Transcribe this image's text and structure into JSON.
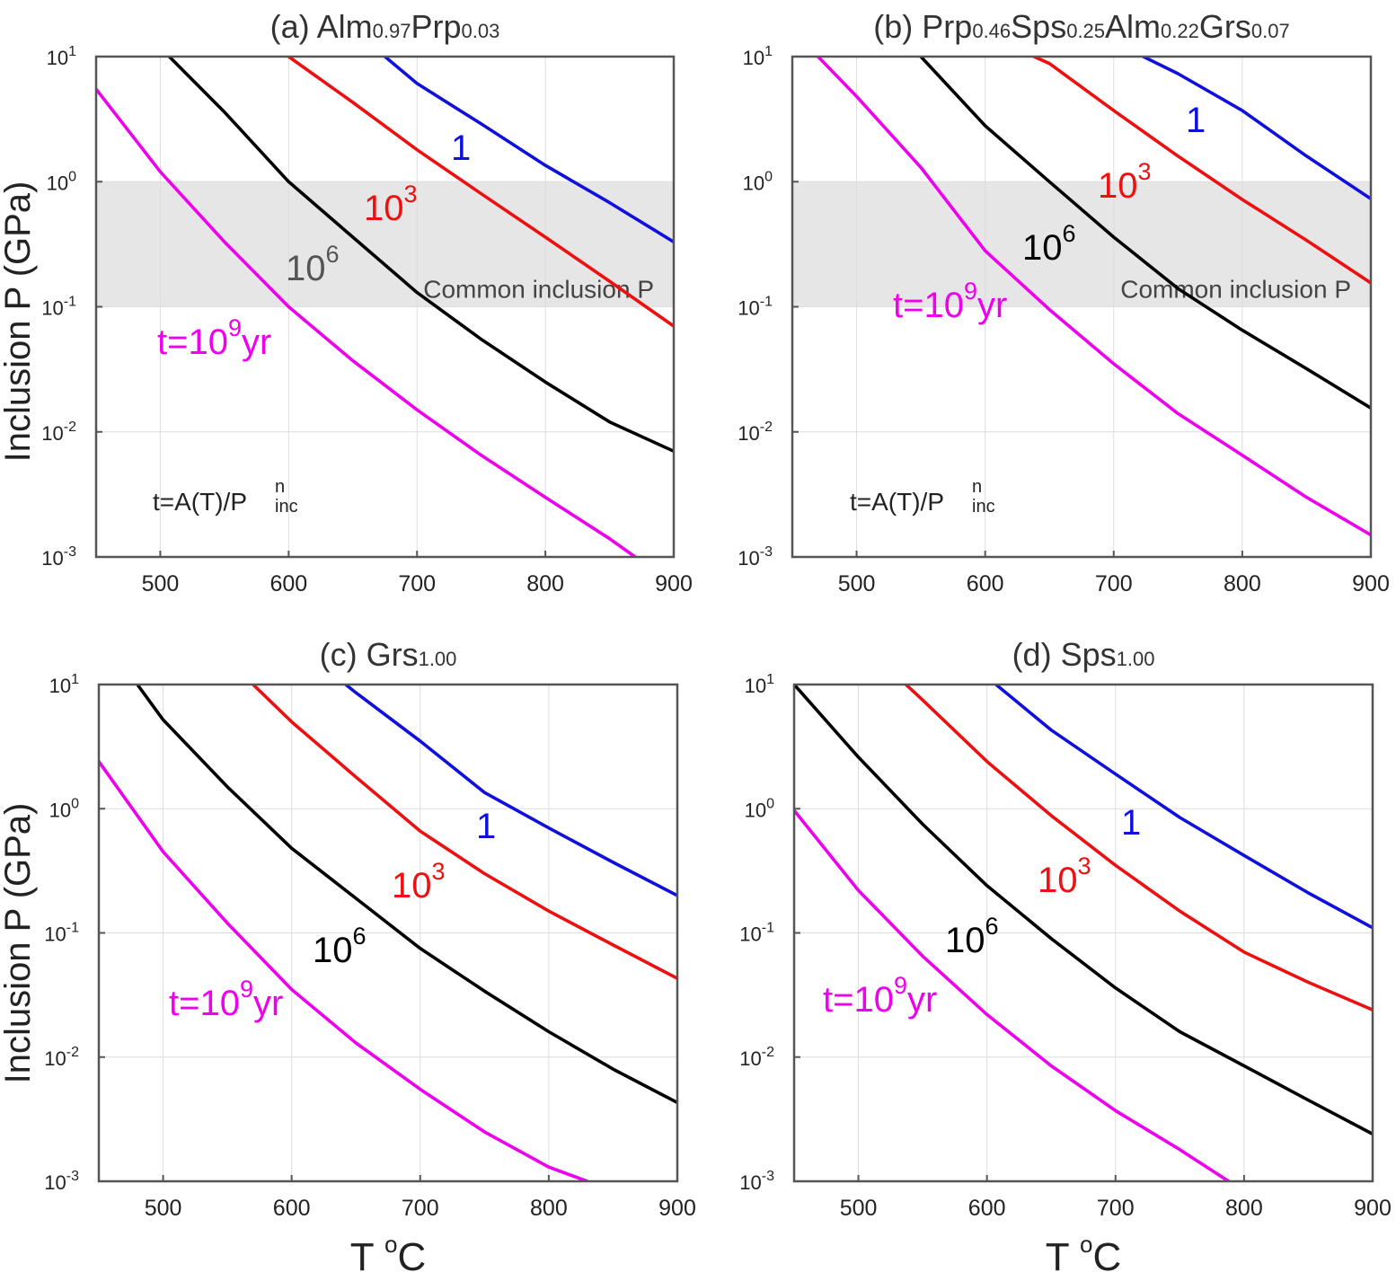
{
  "figure": {
    "ylabel": "Inclusion P (GPa)",
    "xlabel_main": "T",
    "xlabel_sup": "o",
    "xlabel_unit": "C"
  },
  "colors": {
    "t1": "#1010dd",
    "t1e3": "#ee1010",
    "t1e6": "#000000",
    "t1e9": "#ee00ee",
    "band": "#e6e6e6",
    "grid": "#dddddd",
    "axis": "#555555",
    "label_gray": "#555555"
  },
  "chart_data": [
    {
      "id": "a",
      "type": "line",
      "title_prefix": "(a) ",
      "title_parts": [
        [
          "Alm",
          "0.97"
        ],
        [
          "Prp",
          "0.03"
        ]
      ],
      "xlim": [
        450,
        900
      ],
      "ylim": [
        0.001,
        10
      ],
      "yscale": "log",
      "xticks": [
        500,
        600,
        700,
        800,
        900
      ],
      "ytick_exponents": [
        1,
        0,
        -1,
        -2,
        -3
      ],
      "grid": true,
      "band": {
        "ymin": 0.1,
        "ymax": 1,
        "label": "Common inclusion P"
      },
      "formula": {
        "main": "t=A(T)/P",
        "sup": "n",
        "sub": "inc"
      },
      "series": [
        {
          "label": "1",
          "color_key": "t1",
          "x": [
            675,
            700,
            750,
            800,
            850,
            900
          ],
          "y": [
            10,
            6.1,
            2.9,
            1.35,
            0.68,
            0.33
          ]
        },
        {
          "label": "10^3",
          "color_key": "t1e3",
          "x": [
            600,
            650,
            700,
            750,
            800,
            850,
            900
          ],
          "y": [
            10,
            4.3,
            1.8,
            0.8,
            0.36,
            0.16,
            0.07
          ]
        },
        {
          "label": "10^6",
          "color_key": "t1e6",
          "x": [
            507,
            550,
            600,
            650,
            700,
            750,
            800,
            850,
            900
          ],
          "y": [
            10,
            3.6,
            1.0,
            0.36,
            0.13,
            0.055,
            0.025,
            0.012,
            0.007
          ]
        },
        {
          "label": "t=10^9yr",
          "color_key": "t1e9",
          "x": [
            450,
            500,
            550,
            600,
            650,
            700,
            750,
            800,
            850,
            870
          ],
          "y": [
            5.5,
            1.2,
            0.33,
            0.1,
            0.037,
            0.015,
            0.0065,
            0.003,
            0.0014,
            0.001
          ]
        }
      ],
      "annotations": [
        {
          "base": "1",
          "exp": "",
          "suffix": "",
          "color_key": "t1"
        },
        {
          "base": "10",
          "exp": "3",
          "suffix": "",
          "color_key": "t1e3"
        },
        {
          "base": "10",
          "exp": "6",
          "suffix": "",
          "color_key": "label_gray"
        },
        {
          "base": "t=10",
          "exp": "9",
          "suffix": "yr",
          "color_key": "t1e9"
        }
      ]
    },
    {
      "id": "b",
      "type": "line",
      "title_prefix": "(b) ",
      "title_parts": [
        [
          "Prp",
          "0.46"
        ],
        [
          "Sps",
          "0.25"
        ],
        [
          "Alm",
          "0.22"
        ],
        [
          "Grs",
          "0.07"
        ]
      ],
      "xlim": [
        450,
        900
      ],
      "ylim": [
        0.001,
        10
      ],
      "yscale": "log",
      "xticks": [
        500,
        600,
        700,
        800,
        900
      ],
      "ytick_exponents": [
        1,
        0,
        -1,
        -2,
        -3
      ],
      "grid": true,
      "band": {
        "ymin": 0.1,
        "ymax": 1,
        "label": "Common inclusion P"
      },
      "formula": {
        "main": "t=A(T)/P",
        "sup": "n",
        "sub": "inc"
      },
      "series": [
        {
          "label": "1",
          "color_key": "t1",
          "x": [
            723,
            750,
            800,
            850,
            900
          ],
          "y": [
            10,
            7.3,
            3.7,
            1.6,
            0.73
          ]
        },
        {
          "label": "10^3",
          "color_key": "t1e3",
          "x": [
            638,
            650,
            700,
            750,
            800,
            850,
            900
          ],
          "y": [
            10,
            8.8,
            3.7,
            1.6,
            0.72,
            0.34,
            0.155
          ]
        },
        {
          "label": "10^6",
          "color_key": "t1e6",
          "x": [
            550,
            600,
            650,
            700,
            750,
            800,
            850,
            900
          ],
          "y": [
            10,
            2.8,
            1.0,
            0.36,
            0.14,
            0.065,
            0.032,
            0.0155
          ]
        },
        {
          "label": "t=10^9yr",
          "color_key": "t1e9",
          "x": [
            470,
            500,
            550,
            600,
            650,
            700,
            750,
            800,
            850,
            900
          ],
          "y": [
            10,
            4.8,
            1.3,
            0.28,
            0.095,
            0.035,
            0.014,
            0.0065,
            0.003,
            0.0015
          ]
        }
      ],
      "annotations": [
        {
          "base": "1",
          "exp": "",
          "suffix": "",
          "color_key": "t1"
        },
        {
          "base": "10",
          "exp": "3",
          "suffix": "",
          "color_key": "t1e3"
        },
        {
          "base": "10",
          "exp": "6",
          "suffix": "",
          "color_key": "t1e6"
        },
        {
          "base": "t=10",
          "exp": "9",
          "suffix": "yr",
          "color_key": "t1e9"
        }
      ]
    },
    {
      "id": "c",
      "type": "line",
      "title_prefix": "(c) ",
      "title_parts": [
        [
          "Grs",
          "1.00"
        ]
      ],
      "xlim": [
        450,
        900
      ],
      "ylim": [
        0.001,
        10
      ],
      "yscale": "log",
      "xticks": [
        500,
        600,
        700,
        800,
        900
      ],
      "ytick_exponents": [
        1,
        0,
        -1,
        -2,
        -3
      ],
      "grid": true,
      "series": [
        {
          "label": "1",
          "color_key": "t1",
          "x": [
            642,
            650,
            700,
            750,
            800,
            850,
            900
          ],
          "y": [
            10,
            8.6,
            3.5,
            1.35,
            0.7,
            0.37,
            0.2
          ]
        },
        {
          "label": "10^3",
          "color_key": "t1e3",
          "x": [
            570,
            600,
            650,
            700,
            750,
            800,
            850,
            900
          ],
          "y": [
            10,
            5.0,
            1.8,
            0.66,
            0.3,
            0.15,
            0.08,
            0.043
          ]
        },
        {
          "label": "10^6",
          "color_key": "t1e6",
          "x": [
            480,
            500,
            550,
            600,
            650,
            700,
            750,
            800,
            850,
            900
          ],
          "y": [
            10,
            5.2,
            1.5,
            0.48,
            0.19,
            0.075,
            0.034,
            0.016,
            0.008,
            0.0043
          ]
        },
        {
          "label": "t=10^9yr",
          "color_key": "t1e9",
          "x": [
            450,
            500,
            550,
            600,
            650,
            700,
            750,
            800,
            830
          ],
          "y": [
            2.4,
            0.45,
            0.12,
            0.035,
            0.013,
            0.0055,
            0.0025,
            0.0013,
            0.001
          ]
        }
      ],
      "annotations": [
        {
          "base": "1",
          "exp": "",
          "suffix": "",
          "color_key": "t1"
        },
        {
          "base": "10",
          "exp": "3",
          "suffix": "",
          "color_key": "t1e3"
        },
        {
          "base": "10",
          "exp": "6",
          "suffix": "",
          "color_key": "t1e6"
        },
        {
          "base": "t=10",
          "exp": "9",
          "suffix": "yr",
          "color_key": "t1e9"
        }
      ]
    },
    {
      "id": "d",
      "type": "line",
      "title_prefix": "(d) ",
      "title_parts": [
        [
          "Sps",
          "1.00"
        ]
      ],
      "xlim": [
        450,
        900
      ],
      "ylim": [
        0.001,
        10
      ],
      "yscale": "log",
      "xticks": [
        500,
        600,
        700,
        800,
        900
      ],
      "ytick_exponents": [
        1,
        0,
        -1,
        -2,
        -3
      ],
      "grid": true,
      "series": [
        {
          "label": "1",
          "color_key": "t1",
          "x": [
            607,
            650,
            700,
            750,
            800,
            850,
            900
          ],
          "y": [
            10,
            4.3,
            1.9,
            0.85,
            0.42,
            0.21,
            0.11
          ]
        },
        {
          "label": "10^3",
          "color_key": "t1e3",
          "x": [
            537,
            550,
            600,
            650,
            700,
            750,
            800,
            850,
            900
          ],
          "y": [
            10,
            7.5,
            2.4,
            0.88,
            0.35,
            0.15,
            0.07,
            0.04,
            0.024
          ]
        },
        {
          "label": "10^6",
          "color_key": "t1e6",
          "x": [
            450,
            500,
            550,
            600,
            650,
            700,
            750,
            800,
            850,
            900
          ],
          "y": [
            10,
            2.6,
            0.75,
            0.24,
            0.09,
            0.036,
            0.016,
            0.0085,
            0.0045,
            0.0024
          ]
        },
        {
          "label": "t=10^9yr",
          "color_key": "t1e9",
          "x": [
            450,
            500,
            550,
            600,
            650,
            700,
            750,
            788
          ],
          "y": [
            0.97,
            0.22,
            0.065,
            0.022,
            0.0085,
            0.0037,
            0.0018,
            0.001
          ]
        }
      ],
      "annotations": [
        {
          "base": "1",
          "exp": "",
          "suffix": "",
          "color_key": "t1"
        },
        {
          "base": "10",
          "exp": "3",
          "suffix": "",
          "color_key": "t1e3"
        },
        {
          "base": "10",
          "exp": "6",
          "suffix": "",
          "color_key": "t1e6"
        },
        {
          "base": "t=10",
          "exp": "9",
          "suffix": "yr",
          "color_key": "t1e9"
        }
      ]
    }
  ]
}
